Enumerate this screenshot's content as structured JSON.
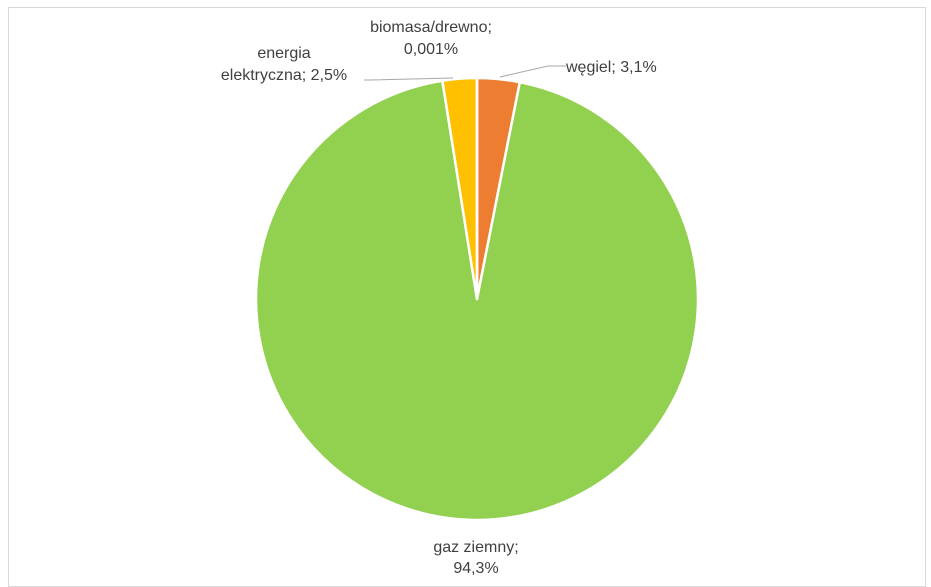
{
  "chart_data": {
    "type": "pie",
    "title": "",
    "slices": [
      {
        "label": "węgiel; 3,1%",
        "name": "węgiel",
        "value": 3.1,
        "color": "#ed7d31"
      },
      {
        "label": "gaz ziemny; 94,3%",
        "name": "gaz ziemny",
        "value": 94.3,
        "color": "#92d050"
      },
      {
        "label": "energia elektryczna; 2,5%",
        "name": "energia elektryczna",
        "value": 2.5,
        "color": "#ffc000"
      },
      {
        "label": "biomasa/drewno; 0,001%",
        "name": "biomasa/drewno",
        "value": 0.001,
        "color": "#a5a5a5"
      }
    ],
    "labels": {
      "wegiel": "węgiel; 3,1%",
      "gaz_line1": "gaz ziemny;",
      "gaz_line2": "94,3%",
      "energia_line1": "energia",
      "energia_line2": "elektryczna; 2,5%",
      "biomasa_line1": "biomasa/drewno;",
      "biomasa_line2": "0,001%"
    },
    "legend": "none"
  }
}
